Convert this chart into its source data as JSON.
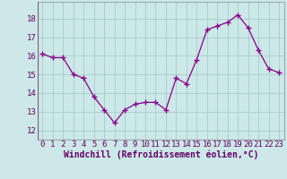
{
  "x": [
    0,
    1,
    2,
    3,
    4,
    5,
    6,
    7,
    8,
    9,
    10,
    11,
    12,
    13,
    14,
    15,
    16,
    17,
    18,
    19,
    20,
    21,
    22,
    23
  ],
  "y": [
    16.1,
    15.9,
    15.9,
    15.0,
    14.8,
    13.8,
    13.1,
    12.4,
    13.1,
    13.4,
    13.5,
    13.5,
    13.1,
    14.8,
    14.5,
    15.8,
    17.4,
    17.6,
    17.8,
    18.2,
    17.5,
    16.3,
    15.3,
    15.1
  ],
  "line_color": "#880088",
  "marker": "+",
  "marker_size": 4,
  "background_color": "#cce8e8",
  "grid_color": "#aacccc",
  "xlabel": "Windchill (Refroidissement éolien,°C)",
  "xlabel_fontsize": 7,
  "tick_fontsize": 6.5,
  "ylim": [
    11.5,
    18.9
  ],
  "yticks": [
    12,
    13,
    14,
    15,
    16,
    17,
    18
  ],
  "xlim": [
    -0.5,
    23.5
  ],
  "xticks": [
    0,
    1,
    2,
    3,
    4,
    5,
    6,
    7,
    8,
    9,
    10,
    11,
    12,
    13,
    14,
    15,
    16,
    17,
    18,
    19,
    20,
    21,
    22,
    23
  ]
}
